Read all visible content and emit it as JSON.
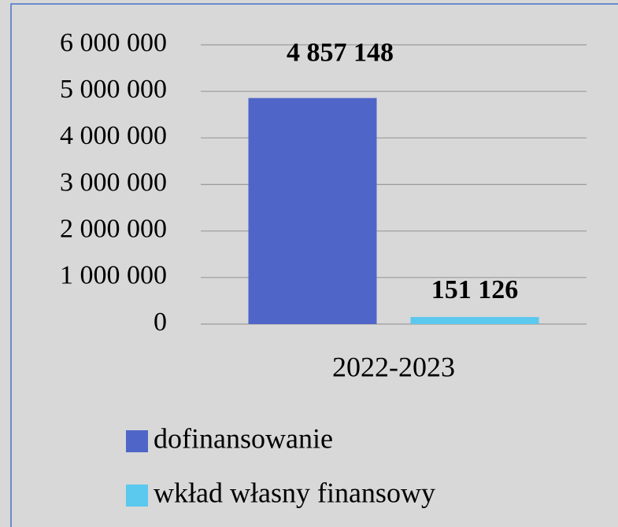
{
  "chart_data": {
    "type": "bar",
    "categories": [
      "2022-2023"
    ],
    "series": [
      {
        "name": "dofinansowanie",
        "color": "#4f66c8",
        "values": [
          4857148
        ],
        "value_labels": [
          "4 857 148"
        ]
      },
      {
        "name": "wkład własny finansowy",
        "color": "#5bc8ee",
        "values": [
          151126
        ],
        "value_labels": [
          "151 126"
        ]
      }
    ],
    "ylim": [
      0,
      6000000
    ],
    "yticks": [
      {
        "value": 0,
        "label": "0"
      },
      {
        "value": 1000000,
        "label": "1 000 000"
      },
      {
        "value": 2000000,
        "label": "2 000 000"
      },
      {
        "value": 3000000,
        "label": "3 000 000"
      },
      {
        "value": 4000000,
        "label": "4 000 000"
      },
      {
        "value": 5000000,
        "label": "5 000 000"
      },
      {
        "value": 6000000,
        "label": "6 000 000"
      }
    ],
    "grid": true,
    "legend": "bottom"
  }
}
